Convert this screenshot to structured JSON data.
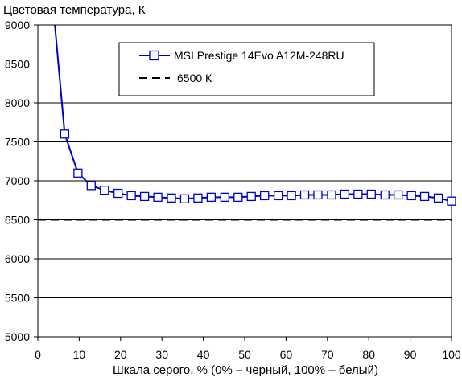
{
  "chart_data": {
    "type": "line",
    "ylabel": "Цветовая температура, К",
    "xlabel": "Шкала серого, % (0% – черный, 100% – белый)",
    "xlim": [
      0,
      100
    ],
    "ylim": [
      5000,
      9000
    ],
    "x_ticks": [
      0,
      10,
      20,
      30,
      40,
      50,
      60,
      70,
      80,
      90,
      100
    ],
    "y_ticks": [
      5000,
      5500,
      6000,
      6500,
      7000,
      7500,
      8000,
      8500,
      9000
    ],
    "grid": "horizontal",
    "legend_position": "top-right",
    "series": [
      {
        "name": "MSI Prestige 14Evo A12M-248RU",
        "color": "#0000cc",
        "style": "solid",
        "marker": "square-open",
        "line_start": [
          4,
          9070
        ],
        "x": [
          6.5,
          9.7,
          12.9,
          16.1,
          19.4,
          22.6,
          25.8,
          29.0,
          32.3,
          35.5,
          38.7,
          41.9,
          45.2,
          48.4,
          51.6,
          54.8,
          58.1,
          61.3,
          64.5,
          67.7,
          71.0,
          74.2,
          77.4,
          80.6,
          83.9,
          87.1,
          90.3,
          93.5,
          96.8,
          100
        ],
        "values": [
          7600,
          7100,
          6940,
          6880,
          6840,
          6810,
          6800,
          6790,
          6780,
          6770,
          6780,
          6790,
          6790,
          6790,
          6800,
          6810,
          6810,
          6810,
          6820,
          6820,
          6820,
          6830,
          6830,
          6830,
          6820,
          6820,
          6810,
          6800,
          6780,
          6740
        ]
      },
      {
        "name": "6500 К",
        "color": "#000000",
        "style": "dashed",
        "x": [
          0,
          100
        ],
        "values": [
          6500,
          6500
        ]
      }
    ]
  }
}
